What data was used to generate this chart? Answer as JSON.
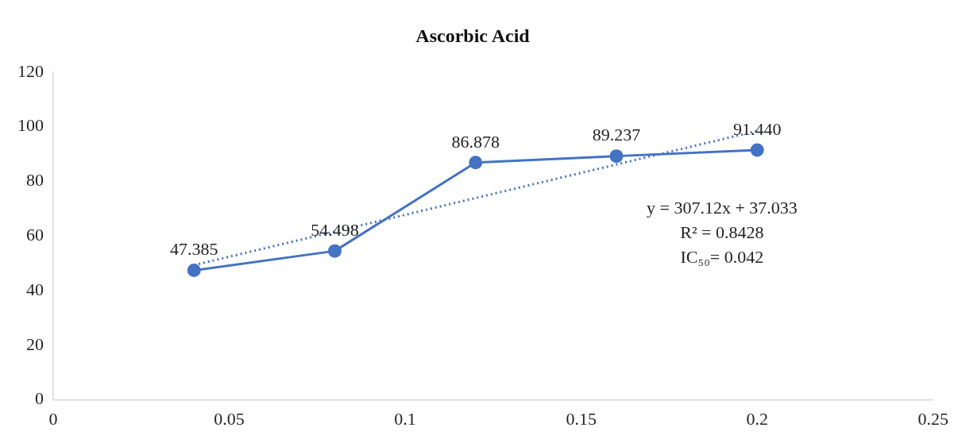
{
  "chart_data": {
    "type": "line",
    "title": "Ascorbic Acid",
    "x": [
      0.04,
      0.08,
      0.12,
      0.16,
      0.2
    ],
    "series": [
      {
        "color": "#4472c4",
        "values": [
          47.385,
          54.498,
          86.878,
          89.237,
          91.44
        ],
        "value_labels": [
          "47.385",
          "54.498",
          "86.878",
          "89.237",
          "91.440"
        ],
        "marker": "circle",
        "line_style": "solid"
      },
      {
        "type": "line",
        "color": "#4472c4",
        "x": [
          0.04,
          0.2
        ],
        "values": [
          49.318,
          98.457
        ],
        "marker": "none",
        "line_style": "dotted"
      }
    ],
    "xlim": [
      0,
      0.25
    ],
    "xticks": [
      0,
      0.05,
      0.1,
      0.15,
      0.2,
      0.25
    ],
    "ylim": [
      0,
      120
    ],
    "yticks": [
      0,
      20,
      40,
      60,
      80,
      100,
      120
    ],
    "grid": false,
    "legend": false,
    "annotations": [
      "y = 307.12x + 37.033",
      "R² = 0.8428",
      "IC₅₀= 0.042"
    ]
  }
}
